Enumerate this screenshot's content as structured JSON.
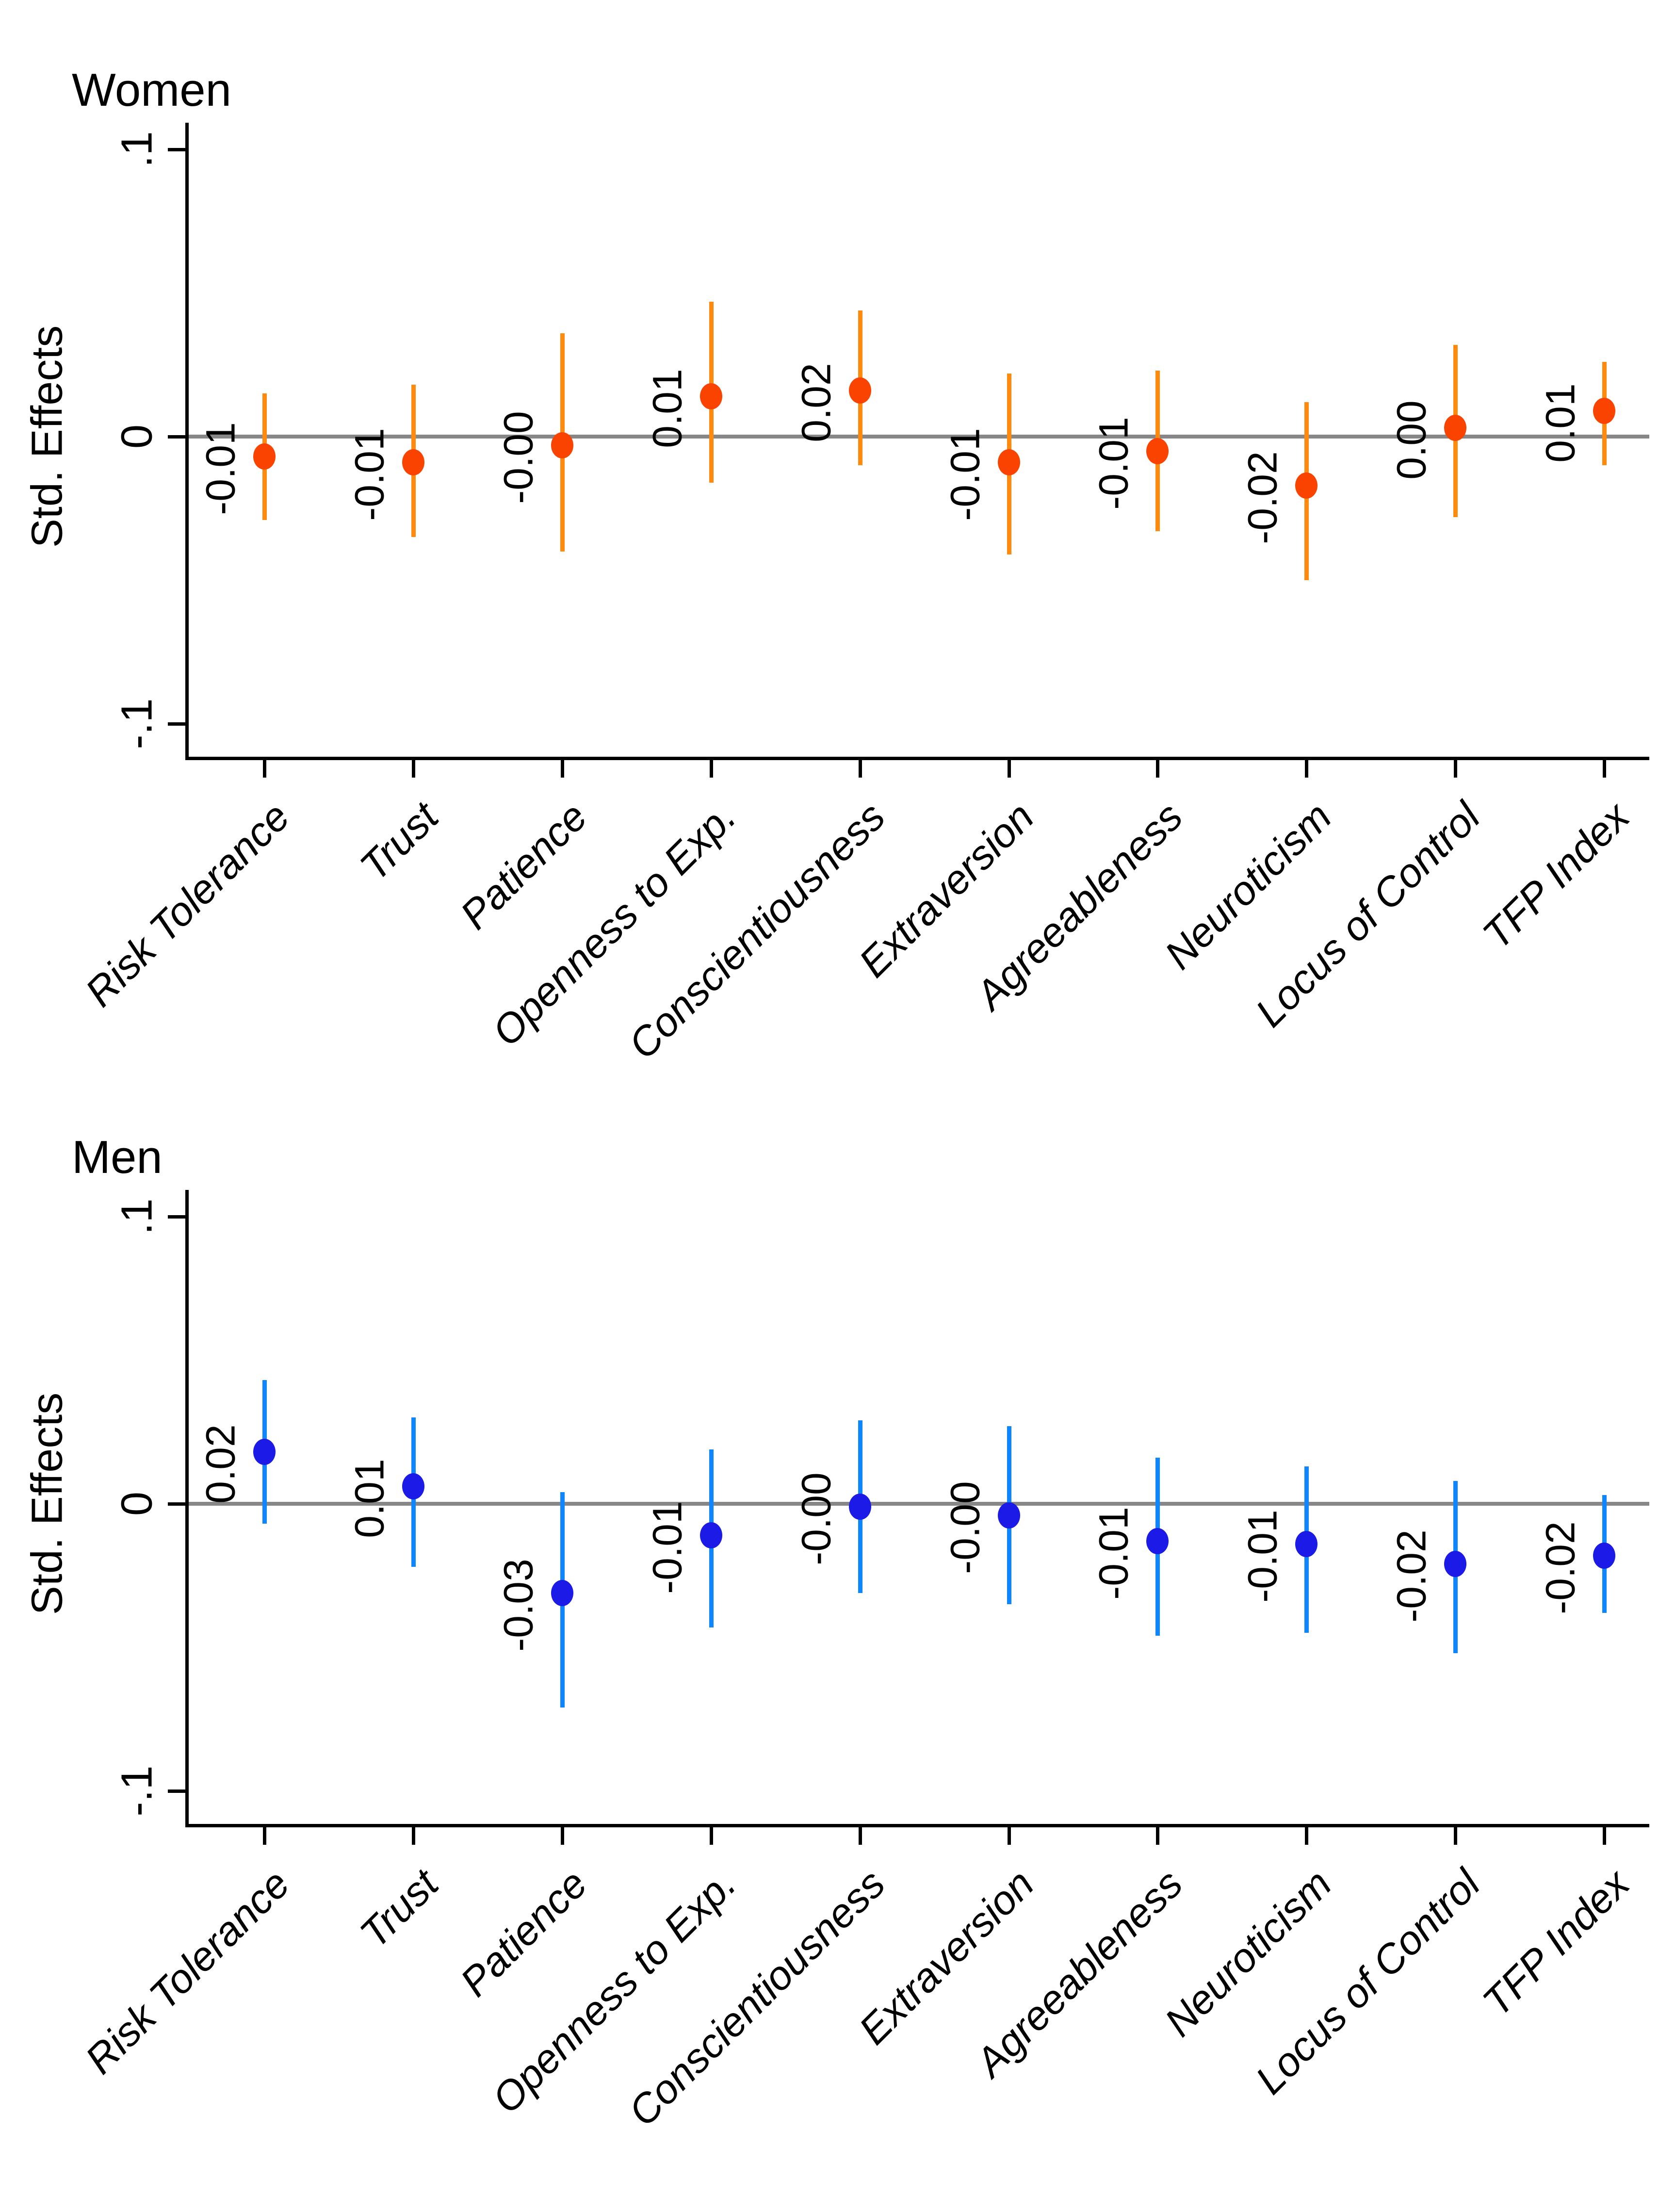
{
  "figure_title": "",
  "chart_data": [
    {
      "type": "scatter",
      "subtype": "point-estimates-with-confidence-intervals",
      "title": "Women",
      "ylabel": "Std. Effects",
      "ylim": [
        -0.1,
        0.1
      ],
      "grid": false,
      "legend": "none",
      "yticks": [
        {
          "value": 0.1,
          "label": ".1"
        },
        {
          "value": 0,
          "label": "0"
        },
        {
          "value": -0.1,
          "label": "-.1"
        }
      ],
      "zero_line_color": "#878787",
      "colors": {
        "point": "#fb4300",
        "ci_line": "#ff8a0d"
      },
      "categories": [
        "Risk Tolerance",
        "Trust",
        "Patience",
        "Openness to Exp.",
        "Conscientiousness",
        "Extraversion",
        "Agreeableness",
        "Neuroticism",
        "Locus of Control",
        "TFP Index"
      ],
      "points": [
        {
          "category": "Risk Tolerance",
          "value": -0.007,
          "label": "-0.01",
          "ci_low": -0.029,
          "ci_high": 0.015
        },
        {
          "category": "Trust",
          "value": -0.009,
          "label": "-0.01",
          "ci_low": -0.035,
          "ci_high": 0.018
        },
        {
          "category": "Patience",
          "value": -0.003,
          "label": "-0.00",
          "ci_low": -0.04,
          "ci_high": 0.036
        },
        {
          "category": "Openness to Exp.",
          "value": 0.014,
          "label": "0.01",
          "ci_low": -0.016,
          "ci_high": 0.047
        },
        {
          "category": "Conscientiousness",
          "value": 0.016,
          "label": "0.02",
          "ci_low": -0.01,
          "ci_high": 0.044
        },
        {
          "category": "Extraversion",
          "value": -0.009,
          "label": "-0.01",
          "ci_low": -0.041,
          "ci_high": 0.022
        },
        {
          "category": "Agreeableness",
          "value": -0.005,
          "label": "-0.01",
          "ci_low": -0.033,
          "ci_high": 0.023
        },
        {
          "category": "Neuroticism",
          "value": -0.017,
          "label": "-0.02",
          "ci_low": -0.05,
          "ci_high": 0.012
        },
        {
          "category": "Locus of Control",
          "value": 0.003,
          "label": "0.00",
          "ci_low": -0.028,
          "ci_high": 0.032
        },
        {
          "category": "TFP Index",
          "value": 0.009,
          "label": "0.01",
          "ci_low": -0.01,
          "ci_high": 0.026
        }
      ]
    },
    {
      "type": "scatter",
      "subtype": "point-estimates-with-confidence-intervals",
      "title": "Men",
      "ylabel": "Std. Effects",
      "ylim": [
        -0.1,
        0.1
      ],
      "grid": false,
      "legend": "none",
      "yticks": [
        {
          "value": 0.1,
          "label": ".1"
        },
        {
          "value": 0,
          "label": "0"
        },
        {
          "value": -0.1,
          "label": "-.1"
        }
      ],
      "zero_line_color": "#878787",
      "colors": {
        "point": "#1b1ae6",
        "ci_line": "#0d86ff"
      },
      "categories": [
        "Risk Tolerance",
        "Trust",
        "Patience",
        "Openness to Exp.",
        "Conscientiousness",
        "Extraversion",
        "Agreeableness",
        "Neuroticism",
        "Locus of Control",
        "TFP Index"
      ],
      "points": [
        {
          "category": "Risk Tolerance",
          "value": 0.018,
          "label": "0.02",
          "ci_low": -0.007,
          "ci_high": 0.043
        },
        {
          "category": "Trust",
          "value": 0.006,
          "label": "0.01",
          "ci_low": -0.022,
          "ci_high": 0.03
        },
        {
          "category": "Patience",
          "value": -0.031,
          "label": "-0.03",
          "ci_low": -0.071,
          "ci_high": 0.004
        },
        {
          "category": "Openness to Exp.",
          "value": -0.011,
          "label": "-0.01",
          "ci_low": -0.043,
          "ci_high": 0.019
        },
        {
          "category": "Conscientiousness",
          "value": -0.001,
          "label": "-0.00",
          "ci_low": -0.031,
          "ci_high": 0.029
        },
        {
          "category": "Extraversion",
          "value": -0.004,
          "label": "-0.00",
          "ci_low": -0.035,
          "ci_high": 0.027
        },
        {
          "category": "Agreeableness",
          "value": -0.013,
          "label": "-0.01",
          "ci_low": -0.046,
          "ci_high": 0.016
        },
        {
          "category": "Neuroticism",
          "value": -0.014,
          "label": "-0.01",
          "ci_low": -0.045,
          "ci_high": 0.013
        },
        {
          "category": "Locus of Control",
          "value": -0.021,
          "label": "-0.02",
          "ci_low": -0.052,
          "ci_high": 0.008
        },
        {
          "category": "TFP Index",
          "value": -0.018,
          "label": "-0.02",
          "ci_low": -0.038,
          "ci_high": 0.003
        }
      ]
    }
  ]
}
